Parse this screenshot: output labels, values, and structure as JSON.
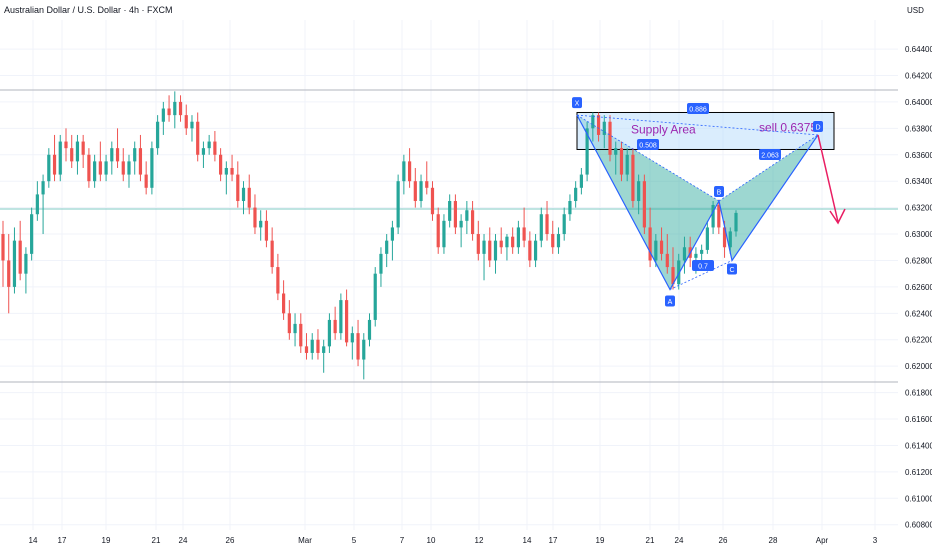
{
  "header": {
    "title": "Australian Dollar / U.S. Dollar · 4h · FXCM",
    "currency": "USD"
  },
  "colors": {
    "up": "#26a69a",
    "down": "#ef5350",
    "pattern_fill": "#26a69a",
    "pattern_line": "#2962ff",
    "zone_fill": "#bbdefb",
    "zone_border": "#000000",
    "label_text": "#9c27b0",
    "arrow": "#e91e63",
    "grid": "#f0f3fa"
  },
  "annotations": {
    "zone_label": "Supply Area",
    "sell_label": "sell 0.6375",
    "points": {
      "X": "X",
      "A": "A",
      "B": "B",
      "C": "C",
      "D": "D"
    },
    "ratios": {
      "xd": "0.886",
      "xab": "0.508",
      "abc": "0.7",
      "bcd": "2.063"
    }
  },
  "chart_data": {
    "type": "candlestick",
    "title": "Australian Dollar / U.S. Dollar · 4h · FXCM",
    "ylabel": "USD",
    "ylim": [
      0.6076,
      0.6462
    ],
    "y_ticks": [
      "0.64400",
      "0.64200",
      "0.64000",
      "0.63800",
      "0.63600",
      "0.63400",
      "0.63200",
      "0.63000",
      "0.62800",
      "0.62600",
      "0.62400",
      "0.62200",
      "0.62000",
      "0.61800",
      "0.61600",
      "0.61400",
      "0.61200",
      "0.61000",
      "0.60800"
    ],
    "x_ticks": [
      "14",
      "17",
      "19",
      "21",
      "24",
      "26",
      "Mar",
      "5",
      "7",
      "10",
      "12",
      "14",
      "17",
      "19",
      "21",
      "24",
      "26",
      "28",
      "Apr",
      "3"
    ],
    "horizontal_lines": [
      0.6409,
      0.6319,
      0.6188
    ],
    "harmonic_pattern": {
      "X": 0.639,
      "A": 0.6258,
      "B": 0.6325,
      "C": 0.628,
      "D": 0.6375
    },
    "supply_zone": [
      0.6364,
      0.6392
    ],
    "series": [
      {
        "values": [
          [
            0.63,
            0.631,
            0.626,
            0.628
          ],
          [
            0.628,
            0.63,
            0.624,
            0.626
          ],
          [
            0.626,
            0.6305,
            0.6255,
            0.6295
          ],
          [
            0.6295,
            0.631,
            0.6265,
            0.627
          ],
          [
            0.627,
            0.629,
            0.6255,
            0.6285
          ],
          [
            0.6285,
            0.632,
            0.628,
            0.6315
          ],
          [
            0.6315,
            0.634,
            0.631,
            0.633
          ],
          [
            0.633,
            0.6345,
            0.63,
            0.634
          ],
          [
            0.634,
            0.6365,
            0.6335,
            0.636
          ],
          [
            0.636,
            0.6375,
            0.634,
            0.6345
          ],
          [
            0.6345,
            0.6375,
            0.634,
            0.637
          ],
          [
            0.637,
            0.638,
            0.6355,
            0.6365
          ],
          [
            0.6365,
            0.6375,
            0.635,
            0.6355
          ],
          [
            0.6355,
            0.6375,
            0.6345,
            0.637
          ],
          [
            0.637,
            0.6375,
            0.635,
            0.636
          ],
          [
            0.636,
            0.6365,
            0.6335,
            0.634
          ],
          [
            0.634,
            0.636,
            0.6335,
            0.6355
          ],
          [
            0.6355,
            0.637,
            0.634,
            0.6345
          ],
          [
            0.6345,
            0.636,
            0.634,
            0.6355
          ],
          [
            0.6355,
            0.637,
            0.6345,
            0.6365
          ],
          [
            0.6365,
            0.638,
            0.635,
            0.6355
          ],
          [
            0.6355,
            0.6365,
            0.634,
            0.6345
          ],
          [
            0.6345,
            0.636,
            0.6335,
            0.6355
          ],
          [
            0.6355,
            0.637,
            0.6345,
            0.6365
          ],
          [
            0.6365,
            0.6375,
            0.634,
            0.6345
          ],
          [
            0.6345,
            0.6355,
            0.633,
            0.6335
          ],
          [
            0.6335,
            0.637,
            0.633,
            0.6365
          ],
          [
            0.6365,
            0.639,
            0.636,
            0.6385
          ],
          [
            0.6385,
            0.64,
            0.6375,
            0.6395
          ],
          [
            0.6395,
            0.6405,
            0.6385,
            0.639
          ],
          [
            0.639,
            0.6408,
            0.638,
            0.64
          ],
          [
            0.64,
            0.6405,
            0.6385,
            0.639
          ],
          [
            0.639,
            0.6398,
            0.6375,
            0.638
          ],
          [
            0.638,
            0.639,
            0.637,
            0.6385
          ],
          [
            0.6385,
            0.6392,
            0.6355,
            0.636
          ],
          [
            0.636,
            0.637,
            0.635,
            0.6365
          ],
          [
            0.6365,
            0.6375,
            0.636,
            0.637
          ],
          [
            0.637,
            0.6378,
            0.6355,
            0.636
          ],
          [
            0.636,
            0.6365,
            0.634,
            0.6345
          ],
          [
            0.6345,
            0.6355,
            0.633,
            0.635
          ],
          [
            0.635,
            0.636,
            0.634,
            0.6345
          ],
          [
            0.6345,
            0.6355,
            0.632,
            0.6325
          ],
          [
            0.6325,
            0.634,
            0.6315,
            0.6335
          ],
          [
            0.6335,
            0.6345,
            0.6315,
            0.632
          ],
          [
            0.632,
            0.633,
            0.63,
            0.6305
          ],
          [
            0.6305,
            0.6318,
            0.6295,
            0.631
          ],
          [
            0.631,
            0.6318,
            0.629,
            0.6295
          ],
          [
            0.6295,
            0.6305,
            0.627,
            0.6275
          ],
          [
            0.6275,
            0.6285,
            0.625,
            0.6255
          ],
          [
            0.6255,
            0.6265,
            0.6235,
            0.624
          ],
          [
            0.624,
            0.625,
            0.622,
            0.6225
          ],
          [
            0.6225,
            0.624,
            0.6215,
            0.6232
          ],
          [
            0.6232,
            0.624,
            0.621,
            0.6215
          ],
          [
            0.6215,
            0.6225,
            0.6205,
            0.621
          ],
          [
            0.621,
            0.6225,
            0.6205,
            0.622
          ],
          [
            0.622,
            0.6228,
            0.6205,
            0.621
          ],
          [
            0.621,
            0.622,
            0.6195,
            0.6215
          ],
          [
            0.6215,
            0.624,
            0.621,
            0.6235
          ],
          [
            0.6235,
            0.6245,
            0.622,
            0.6225
          ],
          [
            0.6225,
            0.6255,
            0.622,
            0.625
          ],
          [
            0.625,
            0.6258,
            0.6215,
            0.6218
          ],
          [
            0.6218,
            0.623,
            0.6205,
            0.6225
          ],
          [
            0.6225,
            0.6235,
            0.62,
            0.6205
          ],
          [
            0.6205,
            0.6225,
            0.619,
            0.622
          ],
          [
            0.622,
            0.624,
            0.6215,
            0.6235
          ],
          [
            0.6235,
            0.6275,
            0.623,
            0.627
          ],
          [
            0.627,
            0.629,
            0.626,
            0.6285
          ],
          [
            0.6285,
            0.63,
            0.6275,
            0.6295
          ],
          [
            0.6295,
            0.631,
            0.628,
            0.6305
          ],
          [
            0.6305,
            0.6345,
            0.63,
            0.634
          ],
          [
            0.634,
            0.636,
            0.633,
            0.6355
          ],
          [
            0.6355,
            0.6365,
            0.6335,
            0.634
          ],
          [
            0.634,
            0.635,
            0.632,
            0.6325
          ],
          [
            0.6325,
            0.6345,
            0.632,
            0.634
          ],
          [
            0.634,
            0.6355,
            0.633,
            0.6335
          ],
          [
            0.6335,
            0.634,
            0.631,
            0.6315
          ],
          [
            0.6315,
            0.632,
            0.6285,
            0.629
          ],
          [
            0.629,
            0.6315,
            0.6285,
            0.631
          ],
          [
            0.631,
            0.633,
            0.6305,
            0.6325
          ],
          [
            0.6325,
            0.633,
            0.63,
            0.6305
          ],
          [
            0.6305,
            0.6315,
            0.629,
            0.631
          ],
          [
            0.631,
            0.6325,
            0.63,
            0.6318
          ],
          [
            0.6318,
            0.6325,
            0.6295,
            0.63
          ],
          [
            0.63,
            0.631,
            0.628,
            0.6285
          ],
          [
            0.6285,
            0.63,
            0.6265,
            0.6295
          ],
          [
            0.6295,
            0.6305,
            0.6275,
            0.628
          ],
          [
            0.628,
            0.63,
            0.627,
            0.6295
          ],
          [
            0.6295,
            0.6305,
            0.6285,
            0.629
          ],
          [
            0.629,
            0.63,
            0.628,
            0.6298
          ],
          [
            0.6298,
            0.6305,
            0.6285,
            0.629
          ],
          [
            0.629,
            0.631,
            0.6285,
            0.6305
          ],
          [
            0.6305,
            0.632,
            0.629,
            0.6295
          ],
          [
            0.6295,
            0.6302,
            0.6275,
            0.628
          ],
          [
            0.628,
            0.63,
            0.6275,
            0.6295
          ],
          [
            0.6295,
            0.632,
            0.629,
            0.6315
          ],
          [
            0.6315,
            0.6325,
            0.6295,
            0.63
          ],
          [
            0.63,
            0.631,
            0.6285,
            0.629
          ],
          [
            0.629,
            0.6305,
            0.6285,
            0.63
          ],
          [
            0.63,
            0.632,
            0.6295,
            0.6315
          ],
          [
            0.6315,
            0.633,
            0.631,
            0.6325
          ],
          [
            0.6325,
            0.634,
            0.632,
            0.6335
          ],
          [
            0.6335,
            0.635,
            0.633,
            0.6345
          ],
          [
            0.6345,
            0.6385,
            0.634,
            0.638
          ],
          [
            0.638,
            0.6392,
            0.637,
            0.639
          ],
          [
            0.639,
            0.6392,
            0.637,
            0.6375
          ],
          [
            0.6375,
            0.639,
            0.6365,
            0.6385
          ],
          [
            0.6385,
            0.639,
            0.6355,
            0.636
          ],
          [
            0.636,
            0.637,
            0.6345,
            0.6365
          ],
          [
            0.6365,
            0.637,
            0.634,
            0.6345
          ],
          [
            0.6345,
            0.6365,
            0.634,
            0.636
          ],
          [
            0.636,
            0.6365,
            0.632,
            0.6325
          ],
          [
            0.6325,
            0.6345,
            0.6315,
            0.634
          ],
          [
            0.634,
            0.6345,
            0.63,
            0.6305
          ],
          [
            0.6305,
            0.632,
            0.6275,
            0.628
          ],
          [
            0.628,
            0.63,
            0.6275,
            0.6295
          ],
          [
            0.6295,
            0.6305,
            0.628,
            0.6285
          ],
          [
            0.6285,
            0.63,
            0.627,
            0.6275
          ],
          [
            0.6275,
            0.629,
            0.6258,
            0.6262
          ],
          [
            0.6262,
            0.6285,
            0.6258,
            0.628
          ],
          [
            0.628,
            0.6298,
            0.627,
            0.629
          ],
          [
            0.629,
            0.6298,
            0.6275,
            0.6282
          ],
          [
            0.6282,
            0.629,
            0.627,
            0.6285
          ],
          [
            0.6285,
            0.6292,
            0.628,
            0.6288
          ],
          [
            0.6288,
            0.631,
            0.6285,
            0.6305
          ],
          [
            0.6305,
            0.6325,
            0.63,
            0.6322
          ],
          [
            0.6322,
            0.6326,
            0.63,
            0.6305
          ],
          [
            0.6305,
            0.631,
            0.6282,
            0.629
          ],
          [
            0.629,
            0.6305,
            0.6285,
            0.6302
          ],
          [
            0.6302,
            0.6318,
            0.6298,
            0.6316
          ]
        ]
      }
    ]
  }
}
